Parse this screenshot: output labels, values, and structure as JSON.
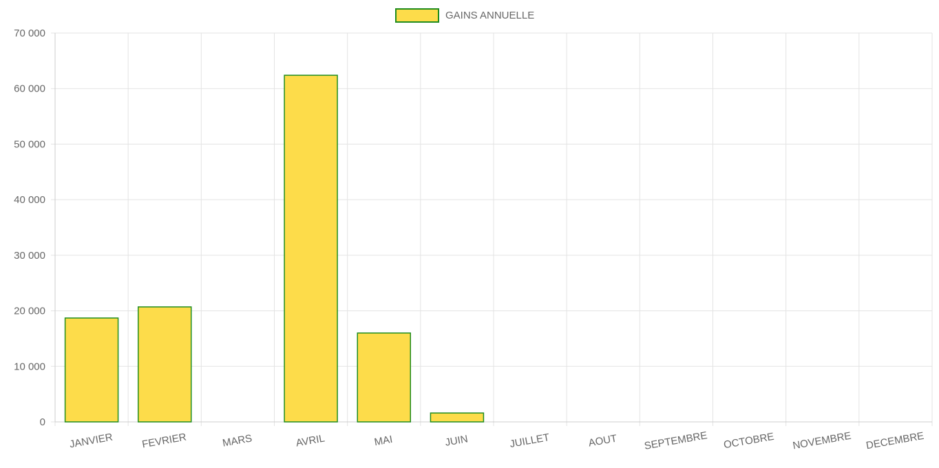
{
  "chart_data": {
    "type": "bar",
    "legend": {
      "label": "GAINS ANNUELLE",
      "position": "top-center"
    },
    "categories": [
      "JANVIER",
      "FEVRIER",
      "MARS",
      "AVRIL",
      "MAI",
      "JUIN",
      "JUILLET",
      "AOUT",
      "SEPTEMBRE",
      "OCTOBRE",
      "NOVEMBRE",
      "DECEMBRE"
    ],
    "series": [
      {
        "name": "GAINS ANNUELLE",
        "values": [
          18700,
          20700,
          0,
          62400,
          16000,
          1600,
          0,
          0,
          0,
          0,
          0,
          0
        ]
      }
    ],
    "ylim": [
      0,
      70000
    ],
    "yticks": [
      0,
      10000,
      20000,
      30000,
      40000,
      50000,
      60000,
      70000
    ],
    "ytick_labels": [
      "0",
      "10 000",
      "20 000",
      "30 000",
      "40 000",
      "50 000",
      "60 000",
      "70 000"
    ],
    "grid": true,
    "colors": {
      "bar_fill": "#fddc4a",
      "bar_border": "#1e8c1e",
      "grid": "#e3e3e3",
      "text": "#666666"
    }
  }
}
